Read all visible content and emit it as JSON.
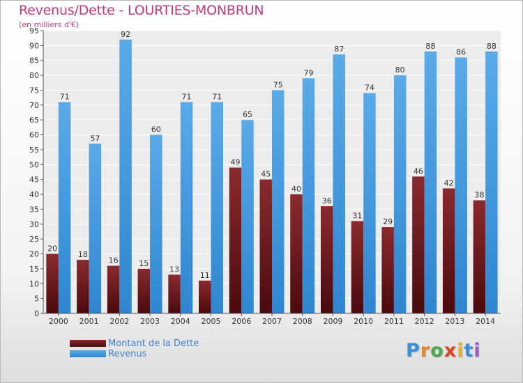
{
  "title": "Revenus/Dette - LOURTIES-MONBRUN",
  "subtitle": "(en milliers d'€)",
  "colors": {
    "dette": "#7a1e22",
    "revenus": "#4a9fe2",
    "title": "#c0397a",
    "legend_text": "#3f7fd8"
  },
  "legend": [
    {
      "label": "Montant de la Dette",
      "color": "#7a1e22"
    },
    {
      "label": "Revenus",
      "color": "#4a9fe2"
    }
  ],
  "logo": {
    "text": "Proxiti"
  },
  "chart_data": {
    "type": "bar",
    "title": "Revenus/Dette - LOURTIES-MONBRUN",
    "subtitle": "(en milliers d'€)",
    "categories": [
      "2000",
      "2001",
      "2002",
      "2003",
      "2004",
      "2005",
      "2006",
      "2007",
      "2008",
      "2009",
      "2010",
      "2011",
      "2012",
      "2013",
      "2014"
    ],
    "series": [
      {
        "name": "Montant de la Dette",
        "values": [
          20,
          18,
          16,
          15,
          13,
          11,
          49,
          45,
          40,
          36,
          31,
          29,
          46,
          42,
          38
        ]
      },
      {
        "name": "Revenus",
        "values": [
          71,
          57,
          92,
          60,
          71,
          71,
          65,
          75,
          79,
          87,
          74,
          80,
          88,
          86,
          88
        ]
      }
    ],
    "ylim": [
      0,
      95
    ],
    "yticks": [
      0,
      5,
      10,
      15,
      20,
      25,
      30,
      35,
      40,
      45,
      50,
      55,
      60,
      65,
      70,
      75,
      80,
      85,
      90,
      95
    ],
    "grid": true,
    "legend_position": "bottom-left"
  }
}
